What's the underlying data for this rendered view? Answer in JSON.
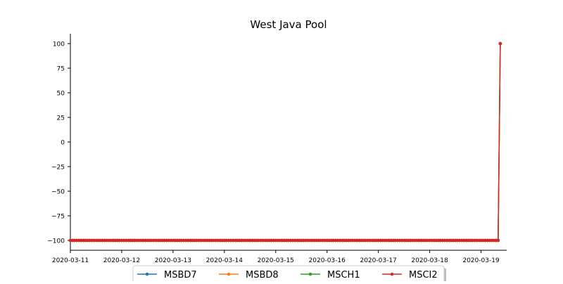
{
  "chart_data": {
    "type": "line",
    "title": "West Java Pool",
    "xlabel": "",
    "ylabel": "",
    "x_range": [
      "2020-03-11",
      "2020-03-19 12:00"
    ],
    "ylim": [
      -110,
      110
    ],
    "x_ticks": [
      "2020-03-11",
      "2020-03-12",
      "2020-03-13",
      "2020-03-14",
      "2020-03-15",
      "2020-03-16",
      "2020-03-17",
      "2020-03-18",
      "2020-03-19"
    ],
    "y_ticks": [
      100,
      75,
      50,
      25,
      0,
      -25,
      -50,
      -75,
      -100
    ],
    "y_tick_labels": [
      "100",
      "75",
      "50",
      "25",
      "0",
      "−25",
      "−50",
      "−75",
      "−100"
    ],
    "grid": false,
    "legend_position": "bottom-center",
    "sampling_interval_hours": 1,
    "series": [
      {
        "name": "MSBD7",
        "color": "#1f77b4",
        "start": "2020-03-11 00:00",
        "constant_value": -100,
        "constant_until": "2020-03-19 08:00",
        "final_point": {
          "x": "2020-03-19 09:00",
          "y": 100
        }
      },
      {
        "name": "MSBD8",
        "color": "#ff7f0e",
        "start": "2020-03-11 00:00",
        "constant_value": -100,
        "constant_until": "2020-03-19 08:00",
        "final_point": {
          "x": "2020-03-19 09:00",
          "y": 100
        }
      },
      {
        "name": "MSCH1",
        "color": "#2ca02c",
        "start": "2020-03-11 00:00",
        "constant_value": -100,
        "constant_until": "2020-03-19 08:00",
        "final_point": {
          "x": "2020-03-19 09:00",
          "y": 100
        }
      },
      {
        "name": "MSCI2",
        "color": "#d62728",
        "start": "2020-03-11 00:00",
        "constant_value": -100,
        "constant_until": "2020-03-19 08:00",
        "final_point": {
          "x": "2020-03-19 09:00",
          "y": 100
        }
      }
    ]
  }
}
